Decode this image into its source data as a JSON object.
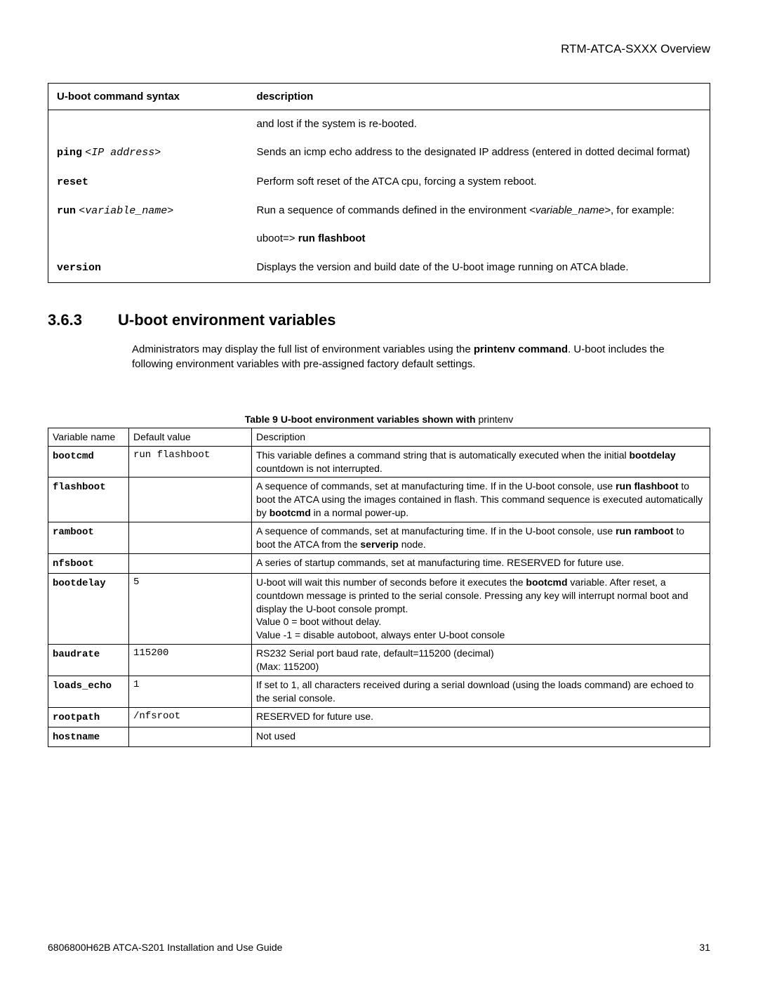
{
  "header": {
    "title": "RTM-ATCA-SXXX Overview"
  },
  "cmd_table": {
    "headers": [
      "U-boot command syntax",
      "description"
    ],
    "rows": [
      {
        "cmd_html": "",
        "desc_html": "and lost if the system is re-booted."
      },
      {
        "cmd_html": "<span class='mono'>ping</span> <span class='mono-i'>&lt;IP address&gt;</span>",
        "desc_html": "Sends an icmp echo address to the designated IP address (entered in dotted decimal format)"
      },
      {
        "cmd_html": "<span class='mono'>reset</span>",
        "desc_html": "Perform soft reset of the ATCA cpu, forcing a system reboot."
      },
      {
        "cmd_html": "<span class='mono'>run</span> <span class='mono-i'>&lt;variable_name&gt;</span>",
        "desc_html": "Run a sequence of commands defined in the environment <span class='ital'>&lt;variable_name&gt;</span>, for example:<br><br>uboot=&gt; <span class='b'>run flashboot</span>"
      },
      {
        "cmd_html": "<span class='mono'>version</span>",
        "desc_html": "Displays the version and build date of the U-boot image running on ATCA blade."
      }
    ]
  },
  "section": {
    "number": "3.6.3",
    "title": "U-boot environment variables",
    "body_html": "Administrators may display the full list of environment variables using the <span class='b'>printenv command</span>. U-boot includes the following environment variables with pre-assigned factory default settings."
  },
  "table9": {
    "caption_bold": "Table 9 U-boot environment variables shown with ",
    "caption_rest": "printenv",
    "headers": [
      "Variable name",
      "Default value",
      "Description"
    ],
    "rows": [
      {
        "name": "bootcmd",
        "default": "run flashboot",
        "desc_html": "This variable defines a command string that is automatically executed when the initial <span class='b'>bootdelay</span> countdown is not interrupted."
      },
      {
        "name": "flashboot",
        "default": "",
        "desc_html": "A sequence of commands, set at manufacturing time. If in the U-boot console, use <span class='b'>run flashboot</span> to boot the ATCA using the images contained in flash. This command sequence is executed automatically by <span class='b'>bootcmd</span> in a normal power-up."
      },
      {
        "name": "ramboot",
        "default": "",
        "desc_html": "A sequence of commands, set at manufacturing time. If in the U-boot console, use <span class='b'>run ramboot</span> to boot the ATCA from the <span class='b'>serverip</span> node."
      },
      {
        "name": "nfsboot",
        "default": "",
        "desc_html": "A series of startup commands, set at manufacturing time. RESERVED for future use."
      },
      {
        "name": "bootdelay",
        "default": "5",
        "desc_html": "U-boot will wait this number of seconds before it executes the <span class='b'>bootcmd</span> variable. After reset, a countdown message is printed to the serial console. Pressing any key will interrupt normal boot and display the U-boot console prompt.<br>Value 0 = boot without delay.<br>Value -1 = disable autoboot, always enter U-boot console"
      },
      {
        "name": "baudrate",
        "default": "115200",
        "desc_html": "RS232 Serial port baud rate, default=115200 (decimal)<br>(Max: 115200)"
      },
      {
        "name": "loads_echo",
        "default": "1",
        "desc_html": "If set to 1, all characters received during a serial download (using the loads command) are echoed to the serial console."
      },
      {
        "name": "rootpath",
        "default": "/nfsroot",
        "desc_html": "RESERVED for future use."
      },
      {
        "name": "hostname",
        "default": "",
        "desc_html": "Not used"
      }
    ]
  },
  "footer": {
    "left": "6806800H62B ATCA-S201 Installation and Use Guide",
    "page": "31"
  }
}
